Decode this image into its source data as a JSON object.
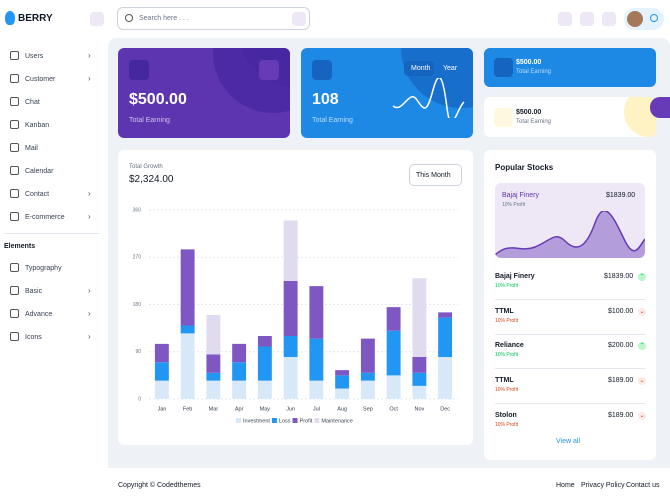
{
  "header": {
    "brand": "BERRY",
    "search_placeholder": "Search here . . ."
  },
  "sidebar": {
    "items": [
      "Users",
      "Customer",
      "Chat",
      "Kanban",
      "Mail",
      "Calendar",
      "Contact",
      "E-commerce"
    ],
    "section": "Elements",
    "element_items": [
      "Typography",
      "Basic",
      "Advance",
      "Icons"
    ]
  },
  "cards": {
    "earning": {
      "value": "$500.00",
      "label": "Total Earning"
    },
    "order": {
      "value": "108",
      "label": "Total Earning",
      "toggles": [
        "Month",
        "Year"
      ]
    },
    "small": [
      {
        "value": "$500.00",
        "label": "Total Earning"
      },
      {
        "value": "$500.00",
        "label": "Total Earning"
      }
    ]
  },
  "chart_data": {
    "type": "bar",
    "stacked": true,
    "title": "Total Growth",
    "subtitle": "$2,324.00",
    "period": "This Month",
    "categories": [
      "Jan",
      "Feb",
      "Mar",
      "Apr",
      "May",
      "Jun",
      "Jul",
      "Aug",
      "Sep",
      "Oct",
      "Nov",
      "Dec"
    ],
    "series": [
      {
        "name": "Investment",
        "color": "#d7e9f9",
        "values": [
          35,
          125,
          35,
          35,
          35,
          80,
          35,
          20,
          35,
          45,
          25,
          80
        ]
      },
      {
        "name": "Loss",
        "color": "#2196f3",
        "values": [
          35,
          15,
          15,
          35,
          65,
          40,
          80,
          25,
          15,
          85,
          25,
          75
        ]
      },
      {
        "name": "Profit",
        "color": "#7e57c2",
        "values": [
          35,
          145,
          35,
          35,
          20,
          105,
          100,
          10,
          65,
          45,
          30,
          10
        ]
      },
      {
        "name": "Maintenance",
        "color": "#e1dbef",
        "values": [
          0,
          0,
          75,
          0,
          0,
          115,
          0,
          0,
          0,
          0,
          150,
          0
        ]
      }
    ],
    "ylim": [
      0,
      360
    ],
    "yticks": [
      0,
      90,
      180,
      270,
      360
    ],
    "grid": true
  },
  "stocks": {
    "title": "Popular Stocks",
    "featured": {
      "name": "Bajaj Finery",
      "value": "$1839.00",
      "note": "10% Profit"
    },
    "rows": [
      {
        "name": "Bajaj Finery",
        "value": "$1839.00",
        "note": "10% Profit"
      },
      {
        "name": "TTML",
        "value": "$100.00",
        "note": "10% Profit"
      },
      {
        "name": "Reliance",
        "value": "$200.00",
        "note": "10% Profit"
      },
      {
        "name": "TTML",
        "value": "$189.00",
        "note": "10% Profit"
      },
      {
        "name": "Stolon",
        "value": "$189.00",
        "note": "10% Profit"
      }
    ],
    "link": "View all"
  },
  "footer": {
    "copyright": "Copyright © Codedthemes",
    "links": [
      "Home",
      "Privacy Policy",
      "Contact us"
    ]
  }
}
